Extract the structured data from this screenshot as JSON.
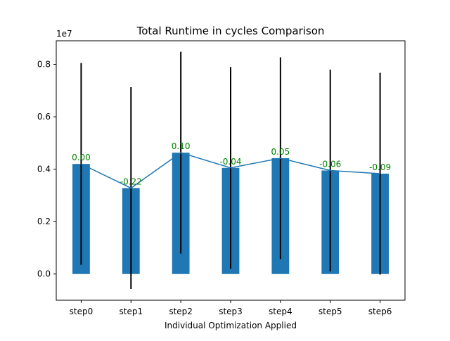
{
  "chart_data": {
    "type": "bar",
    "title": "Total Runtime in cycles Comparison",
    "xlabel": "Individual Optimization Applied",
    "ylabel": "",
    "y_scale_label": "1e7",
    "y_multiplier": 10000000,
    "categories": [
      "step0",
      "step1",
      "step2",
      "step3",
      "step4",
      "step5",
      "step6"
    ],
    "values": [
      4.2,
      3.28,
      4.63,
      4.05,
      4.42,
      3.95,
      3.83
    ],
    "error": [
      3.85,
      3.85,
      3.85,
      3.85,
      3.85,
      3.85,
      3.85
    ],
    "bar_labels": [
      "0.00",
      "-0.22",
      "0.10",
      "-0.04",
      "0.05",
      "-0.06",
      "-0.09"
    ],
    "line_overlay": true,
    "ylim": [
      -1.0,
      8.9
    ],
    "yticks": [
      0.0,
      0.2,
      0.4,
      0.6,
      0.8
    ],
    "ytick_labels": [
      "0.0",
      "0.2",
      "0.4",
      "0.6",
      "0.8"
    ],
    "grid": false,
    "legend": "none",
    "colors": {
      "bar": "#1f77b4",
      "line": "#1f77b4",
      "errorbar": "#000000",
      "label": "#008000",
      "axis": "#000000"
    }
  }
}
